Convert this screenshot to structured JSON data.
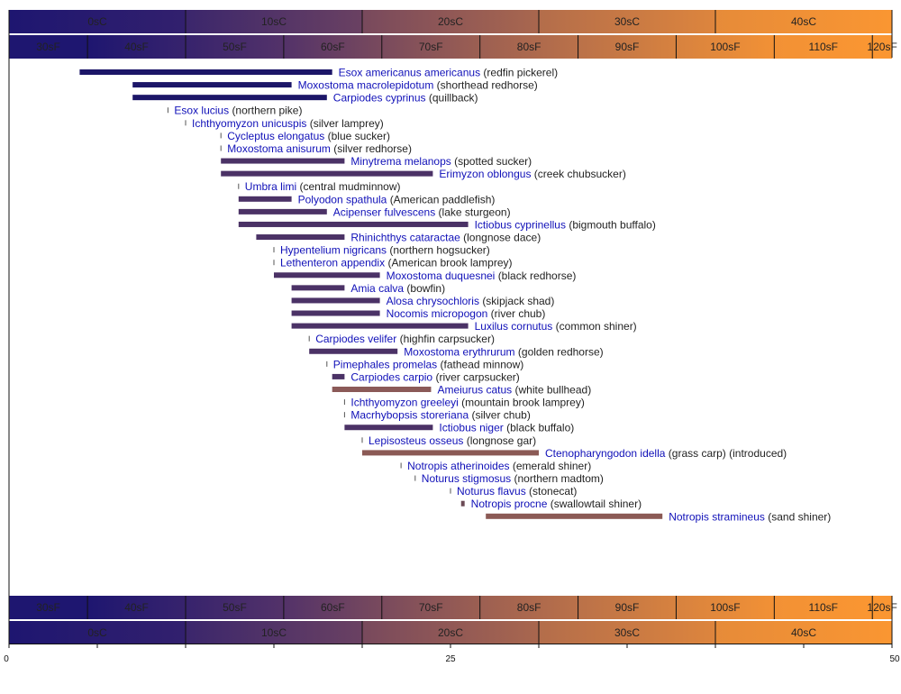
{
  "chart_data": {
    "type": "bar",
    "orientation": "horizontal-range",
    "xlim": [
      0,
      50
    ],
    "x_ticks": [
      0,
      25,
      50
    ],
    "x_minor_step": 5,
    "grid": false,
    "celsius_bands": [
      {
        "label": "0sC",
        "from": 0,
        "to": 10,
        "color": "#1e1670"
      },
      {
        "label": "10sC",
        "from": 10,
        "to": 20,
        "color": "#4f306a"
      },
      {
        "label": "20sC",
        "from": 20,
        "to": 30,
        "color": "#935a55"
      },
      {
        "label": "30sC",
        "from": 30,
        "to": 40,
        "color": "#c97a44"
      },
      {
        "label": "40sC",
        "from": 40,
        "to": 50,
        "color": "#fa9632"
      }
    ],
    "fahrenheit_bands": [
      {
        "label": "30sF",
        "from": 32,
        "to": 40
      },
      {
        "label": "40sF",
        "from": 40,
        "to": 50
      },
      {
        "label": "50sF",
        "from": 50,
        "to": 60
      },
      {
        "label": "60sF",
        "from": 60,
        "to": 70
      },
      {
        "label": "70sF",
        "from": 70,
        "to": 80
      },
      {
        "label": "80sF",
        "from": 80,
        "to": 90
      },
      {
        "label": "90sF",
        "from": 90,
        "to": 100
      },
      {
        "label": "100sF",
        "from": 100,
        "to": 110
      },
      {
        "label": "110sF",
        "from": 110,
        "to": 120
      },
      {
        "label": "120sF",
        "from": 120,
        "to": 122
      }
    ],
    "series": [
      {
        "sci": "Esox americanus americanus",
        "common": "(redfin pickerel)",
        "min": 4.0,
        "max": 18.3,
        "color": "#1c1668"
      },
      {
        "sci": "Moxostoma macrolepidotum",
        "common": "(shorthead redhorse)",
        "min": 7.0,
        "max": 16.0,
        "color": "#1c1668"
      },
      {
        "sci": "Carpiodes cyprinus",
        "common": "(quillback)",
        "min": 7.0,
        "max": 18.0,
        "color": "#1c1668"
      },
      {
        "sci": "Esox lucius",
        "common": "(northern pike)",
        "min": 9.0,
        "max": 9.0,
        "color": "#555"
      },
      {
        "sci": "Ichthyomyzon unicuspis",
        "common": "(silver lamprey)",
        "min": 10.0,
        "max": 10.0,
        "color": "#555"
      },
      {
        "sci": "Cycleptus elongatus",
        "common": "(blue sucker)",
        "min": 12.0,
        "max": 12.0,
        "color": "#555"
      },
      {
        "sci": "Moxostoma anisurum",
        "common": "(silver redhorse)",
        "min": 12.0,
        "max": 12.0,
        "color": "#555"
      },
      {
        "sci": "Minytrema melanops",
        "common": "(spotted sucker)",
        "min": 12.0,
        "max": 19.0,
        "color": "#4b3266"
      },
      {
        "sci": "Erimyzon oblongus",
        "common": "(creek chubsucker)",
        "min": 12.0,
        "max": 24.0,
        "color": "#4b3266"
      },
      {
        "sci": "Umbra limi",
        "common": "(central mudminnow)",
        "min": 13.0,
        "max": 13.0,
        "color": "#555"
      },
      {
        "sci": "Polyodon spathula",
        "common": "(American paddlefish)",
        "min": 13.0,
        "max": 16.0,
        "color": "#4b3266"
      },
      {
        "sci": "Acipenser fulvescens",
        "common": "(lake sturgeon)",
        "min": 13.0,
        "max": 18.0,
        "color": "#4b3266"
      },
      {
        "sci": "Ictiobus cyprinellus",
        "common": "(bigmouth buffalo)",
        "min": 13.0,
        "max": 26.0,
        "color": "#4b3266"
      },
      {
        "sci": "Rhinichthys cataractae",
        "common": "(longnose dace)",
        "min": 14.0,
        "max": 19.0,
        "color": "#4b3266"
      },
      {
        "sci": "Hypentelium nigricans",
        "common": "(northern hogsucker)",
        "min": 15.0,
        "max": 15.0,
        "color": "#555"
      },
      {
        "sci": "Lethenteron appendix",
        "common": "(American brook lamprey)",
        "min": 15.0,
        "max": 15.0,
        "color": "#555"
      },
      {
        "sci": "Moxostoma duquesnei",
        "common": "(black redhorse)",
        "min": 15.0,
        "max": 21.0,
        "color": "#4b3266"
      },
      {
        "sci": "Amia calva",
        "common": "(bowfin)",
        "min": 16.0,
        "max": 19.0,
        "color": "#4b3266"
      },
      {
        "sci": "Alosa chrysochloris",
        "common": "(skipjack shad)",
        "min": 16.0,
        "max": 21.0,
        "color": "#4b3266"
      },
      {
        "sci": "Nocomis micropogon",
        "common": "(river chub)",
        "min": 16.0,
        "max": 21.0,
        "color": "#4b3266"
      },
      {
        "sci": "Luxilus cornutus",
        "common": "(common shiner)",
        "min": 16.0,
        "max": 26.0,
        "color": "#4b3266"
      },
      {
        "sci": "Carpiodes velifer",
        "common": "(highfin carpsucker)",
        "min": 17.0,
        "max": 17.0,
        "color": "#555"
      },
      {
        "sci": "Moxostoma erythrurum",
        "common": "(golden redhorse)",
        "min": 17.0,
        "max": 22.0,
        "color": "#4b3266"
      },
      {
        "sci": "Pimephales promelas",
        "common": "(fathead minnow)",
        "min": 18.0,
        "max": 18.0,
        "color": "#555"
      },
      {
        "sci": "Carpiodes carpio",
        "common": "(river carpsucker)",
        "min": 18.3,
        "max": 19.0,
        "color": "#4b3266"
      },
      {
        "sci": "Ameiurus catus",
        "common": "(white bullhead)",
        "min": 18.3,
        "max": 23.9,
        "color": "#8b5a58"
      },
      {
        "sci": "Ichthyomyzon greeleyi",
        "common": "(mountain brook lamprey)",
        "min": 19.0,
        "max": 19.0,
        "color": "#555"
      },
      {
        "sci": "Macrhybopsis storeriana",
        "common": "(silver chub)",
        "min": 19.0,
        "max": 19.0,
        "color": "#555"
      },
      {
        "sci": "Ictiobus niger",
        "common": "(black buffalo)",
        "min": 19.0,
        "max": 24.0,
        "color": "#4b3266"
      },
      {
        "sci": "Lepisosteus osseus",
        "common": "(longnose gar)",
        "min": 20.0,
        "max": 20.0,
        "color": "#555"
      },
      {
        "sci": "Ctenopharyngodon idella",
        "common": "(grass carp) (introduced)",
        "min": 20.0,
        "max": 30.0,
        "color": "#8b5a55"
      },
      {
        "sci": "Notropis atherinoides",
        "common": "(emerald shiner)",
        "min": 22.2,
        "max": 22.2,
        "color": "#555"
      },
      {
        "sci": "Noturus stigmosus",
        "common": "(northern madtom)",
        "min": 23.0,
        "max": 23.0,
        "color": "#555"
      },
      {
        "sci": "Noturus flavus",
        "common": "(stonecat)",
        "min": 25.0,
        "max": 25.0,
        "color": "#555"
      },
      {
        "sci": "Notropis procne",
        "common": "(swallowtail shiner)",
        "min": 25.6,
        "max": 25.8,
        "color": "#6b4a55"
      },
      {
        "sci": "Notropis stramineus",
        "common": "(sand shiner)",
        "min": 27.0,
        "max": 37.0,
        "color": "#8b5a55"
      }
    ]
  }
}
